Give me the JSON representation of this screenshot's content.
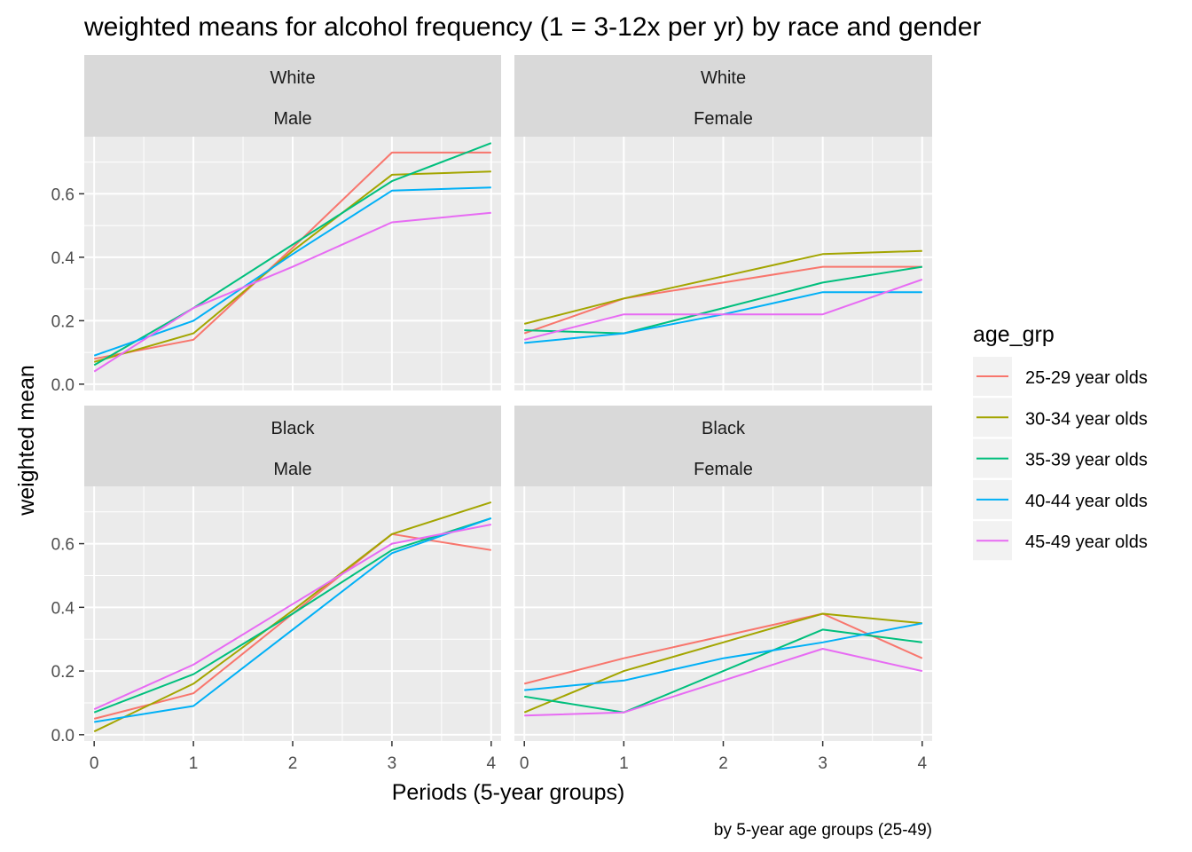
{
  "chart_data": {
    "type": "line",
    "title": "weighted means for alcohol frequency (1 = 3-12x per yr) by race and gender",
    "caption": "by 5-year age groups (25-49)",
    "xlabel": "Periods (5-year groups)",
    "ylabel": "weighted mean",
    "x": [
      0,
      1,
      2,
      3,
      4
    ],
    "x_ticks": [
      "0",
      "1",
      "2",
      "3",
      "4"
    ],
    "y_ticks": [
      "0.0",
      "0.2",
      "0.4",
      "0.6"
    ],
    "xlim": [
      -0.1,
      4.1
    ],
    "ylim": [
      -0.02,
      0.78
    ],
    "grid": true,
    "legend": {
      "title": "age_grp",
      "position": "right",
      "entries": [
        {
          "name": "25-29 year olds",
          "color": "#F8766D"
        },
        {
          "name": "30-34 year olds",
          "color": "#A3A500"
        },
        {
          "name": "35-39 year olds",
          "color": "#00BF7D"
        },
        {
          "name": "40-44 year olds",
          "color": "#00B0F6"
        },
        {
          "name": "45-49 year olds",
          "color": "#E76BF3"
        }
      ]
    },
    "panels": [
      {
        "race": "White",
        "gender": "Male",
        "series": [
          {
            "name": "25-29 year olds",
            "values": [
              0.08,
              0.14,
              0.43,
              0.73,
              0.73
            ]
          },
          {
            "name": "30-34 year olds",
            "values": [
              0.07,
              0.16,
              0.42,
              0.66,
              0.67
            ]
          },
          {
            "name": "35-39 year olds",
            "values": [
              0.06,
              0.24,
              0.44,
              0.64,
              0.76
            ]
          },
          {
            "name": "40-44 year olds",
            "values": [
              0.09,
              0.2,
              0.41,
              0.61,
              0.62
            ]
          },
          {
            "name": "45-49 year olds",
            "values": [
              0.04,
              0.24,
              0.37,
              0.51,
              0.54
            ]
          }
        ]
      },
      {
        "race": "White",
        "gender": "Female",
        "series": [
          {
            "name": "25-29 year olds",
            "values": [
              0.16,
              0.27,
              0.32,
              0.37,
              0.37
            ]
          },
          {
            "name": "30-34 year olds",
            "values": [
              0.19,
              0.27,
              0.34,
              0.41,
              0.42
            ]
          },
          {
            "name": "35-39 year olds",
            "values": [
              0.17,
              0.16,
              0.24,
              0.32,
              0.37
            ]
          },
          {
            "name": "40-44 year olds",
            "values": [
              0.13,
              0.16,
              0.22,
              0.29,
              0.29
            ]
          },
          {
            "name": "45-49 year olds",
            "values": [
              0.14,
              0.22,
              0.22,
              0.22,
              0.33
            ]
          }
        ]
      },
      {
        "race": "Black",
        "gender": "Male",
        "series": [
          {
            "name": "25-29 year olds",
            "values": [
              0.05,
              0.13,
              0.38,
              0.63,
              0.58
            ]
          },
          {
            "name": "30-34 year olds",
            "values": [
              0.01,
              0.16,
              0.39,
              0.63,
              0.73
            ]
          },
          {
            "name": "35-39 year olds",
            "values": [
              0.07,
              0.19,
              0.38,
              0.58,
              0.68
            ]
          },
          {
            "name": "40-44 year olds",
            "values": [
              0.04,
              0.09,
              0.33,
              0.57,
              0.68
            ]
          },
          {
            "name": "45-49 year olds",
            "values": [
              0.08,
              0.22,
              0.41,
              0.6,
              0.66
            ]
          }
        ]
      },
      {
        "race": "Black",
        "gender": "Female",
        "series": [
          {
            "name": "25-29 year olds",
            "values": [
              0.16,
              0.24,
              0.31,
              0.38,
              0.24
            ]
          },
          {
            "name": "30-34 year olds",
            "values": [
              0.07,
              0.2,
              0.29,
              0.38,
              0.35
            ]
          },
          {
            "name": "35-39 year olds",
            "values": [
              0.12,
              0.07,
              0.2,
              0.33,
              0.29
            ]
          },
          {
            "name": "40-44 year olds",
            "values": [
              0.14,
              0.17,
              0.24,
              0.29,
              0.35
            ]
          },
          {
            "name": "45-49 year olds",
            "values": [
              0.06,
              0.07,
              0.17,
              0.27,
              0.2
            ]
          }
        ]
      }
    ]
  }
}
